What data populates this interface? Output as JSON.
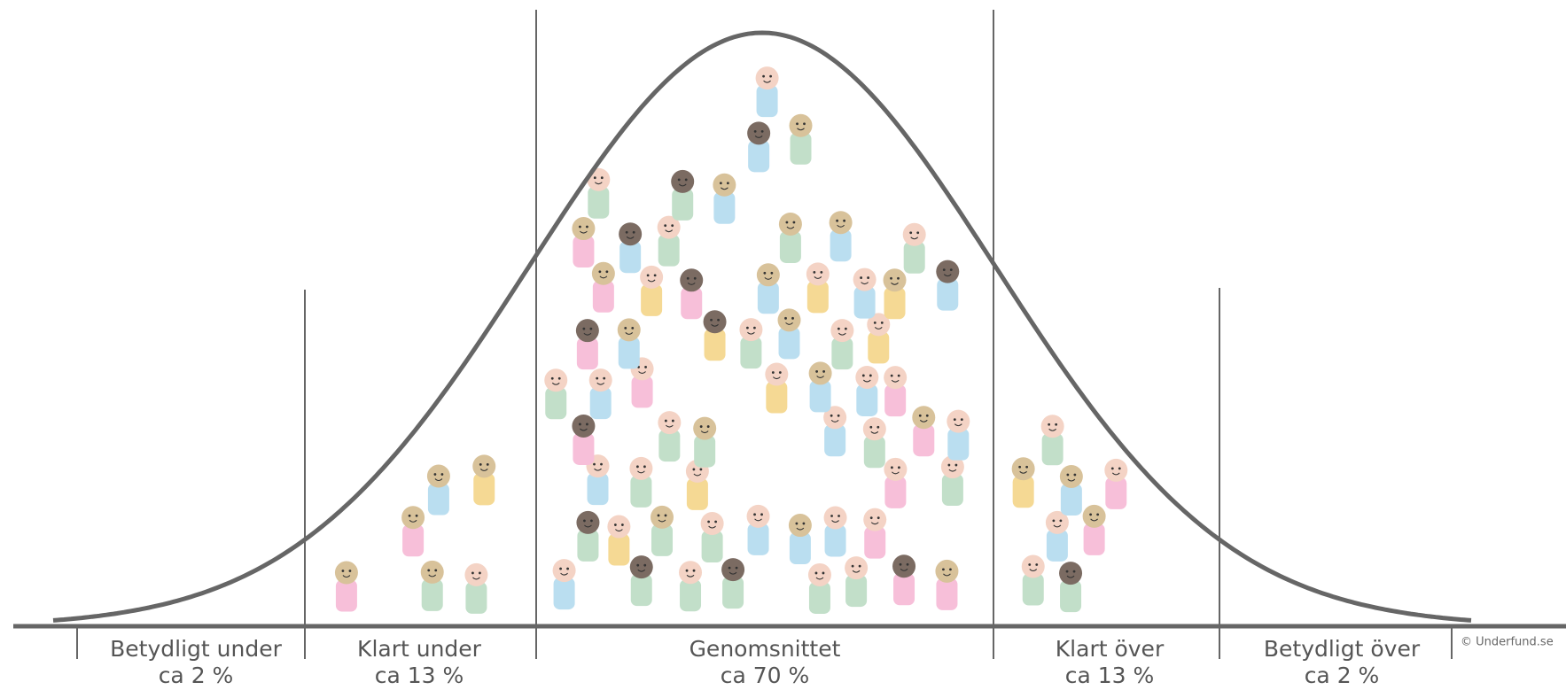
{
  "segments": [
    {
      "label": "Betydligt under",
      "share": "ca 2 %"
    },
    {
      "label": "Klart under",
      "share": "ca 13 %"
    },
    {
      "label": "Genomsnittet",
      "share": "ca 70 %"
    },
    {
      "label": "Klart över",
      "share": "ca 13 %"
    },
    {
      "label": "Betydligt över",
      "share": "ca 2 %"
    }
  ],
  "credit": "© Underfund.se"
}
